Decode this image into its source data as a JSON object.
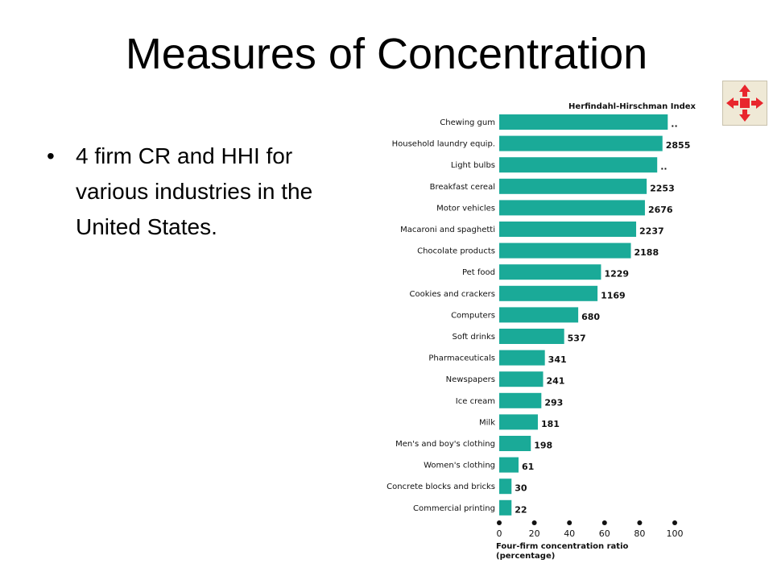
{
  "slide": {
    "title": "Measures of Concentration",
    "bullet": "4 firm CR and HHI for various industries in the United States."
  },
  "nav_icon": {
    "name": "expand-arrows-icon",
    "color": "#e8262d"
  },
  "chart_data": {
    "type": "bar",
    "orientation": "horizontal",
    "title": "Herfindahl-Hirschman Index",
    "xlabel": "Four-firm concentration ratio (percentage)",
    "xlim": [
      0,
      100
    ],
    "xticks": [
      "0",
      "20",
      "40",
      "60",
      "80",
      "100"
    ],
    "bar_color": "#1aaa98",
    "categories": [
      "Chewing gum",
      "Household laundry equip.",
      "Light bulbs",
      "Breakfast cereal",
      "Motor vehicles",
      "Macaroni and spaghetti",
      "Chocolate products",
      "Pet food",
      "Cookies and crackers",
      "Computers",
      "Soft drinks",
      "Pharmaceuticals",
      "Newspapers",
      "Ice cream",
      "Milk",
      "Men's and boy's clothing",
      "Women's clothing",
      "Concrete blocks and bricks",
      "Commercial printing"
    ],
    "values": [
      96,
      93,
      90,
      84,
      83,
      78,
      75,
      58,
      56,
      45,
      37,
      26,
      25,
      24,
      22,
      18,
      11,
      7,
      7
    ],
    "hhi_labels": [
      "..",
      "2855",
      "..",
      "2253",
      "2676",
      "2237",
      "2188",
      "1229",
      "1169",
      "680",
      "537",
      "341",
      "241",
      "293",
      "181",
      "198",
      "61",
      "30",
      "22"
    ]
  }
}
